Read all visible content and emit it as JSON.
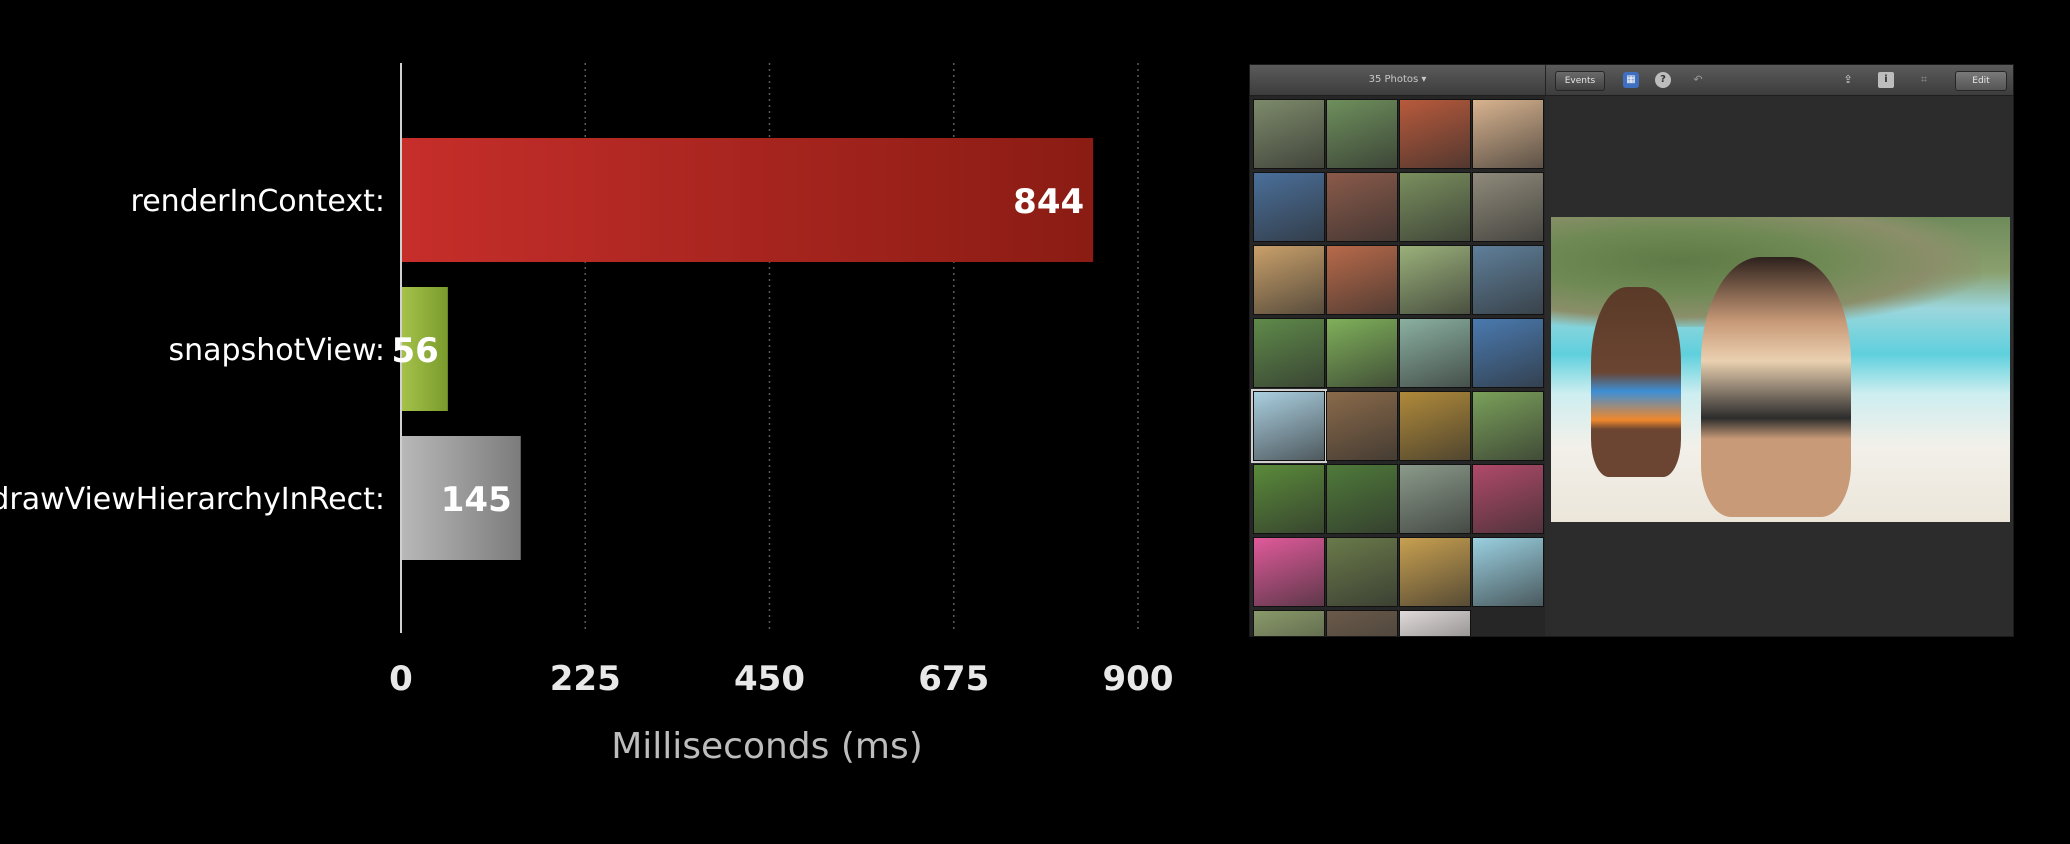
{
  "chart_data": {
    "type": "bar",
    "orientation": "horizontal",
    "categories": [
      "renderInContext:",
      "snapshotView:",
      "drawViewHierarchyInRect:"
    ],
    "values": [
      844,
      56,
      145
    ],
    "value_labels": [
      "844",
      "56",
      "145"
    ],
    "bar_colors": [
      "#b52a24",
      "#8fae3a",
      "#9a9a9a"
    ],
    "xlabel": "Milliseconds (ms)",
    "xlim": [
      0,
      900
    ],
    "xticks": [
      0,
      225,
      450,
      675,
      900
    ],
    "xtick_labels": [
      "0",
      "225",
      "450",
      "675",
      "900"
    ],
    "grid": "vertical dotted",
    "title": "",
    "ylabel": ""
  },
  "screenshot": {
    "toolbar": {
      "photos_count": "35 Photos ▾",
      "events_label": "Events",
      "edit_label": "Edit",
      "icons": [
        "grid-icon",
        "help-icon",
        "undo-icon",
        "share-icon",
        "info-icon",
        "crop-icon"
      ]
    },
    "thumbnail_colors": [
      "#7d8a6a",
      "#6e8f5c",
      "#b85a3c",
      "#d8b38f",
      "#4a6f9a",
      "#8a5a4a",
      "#7a8f5e",
      "#8f8a7a",
      "#c9a06a",
      "#b86a4a",
      "#9ab07a",
      "#5f7f9a",
      "#5f8a4a",
      "#7fb05a",
      "#8ab0a0",
      "#4a7ab0",
      "#aacfe0",
      "#8a6a4a",
      "#b08a3a",
      "#7aa05a",
      "#5a8a3a",
      "#4f7a3a",
      "#8a9a8a",
      "#b04a6a",
      "#e05a9a",
      "#6a7a4a",
      "#c8a050",
      "#9ad0e0",
      "#8a9a6a",
      "#6a5a4a",
      "#e0dada"
    ]
  }
}
